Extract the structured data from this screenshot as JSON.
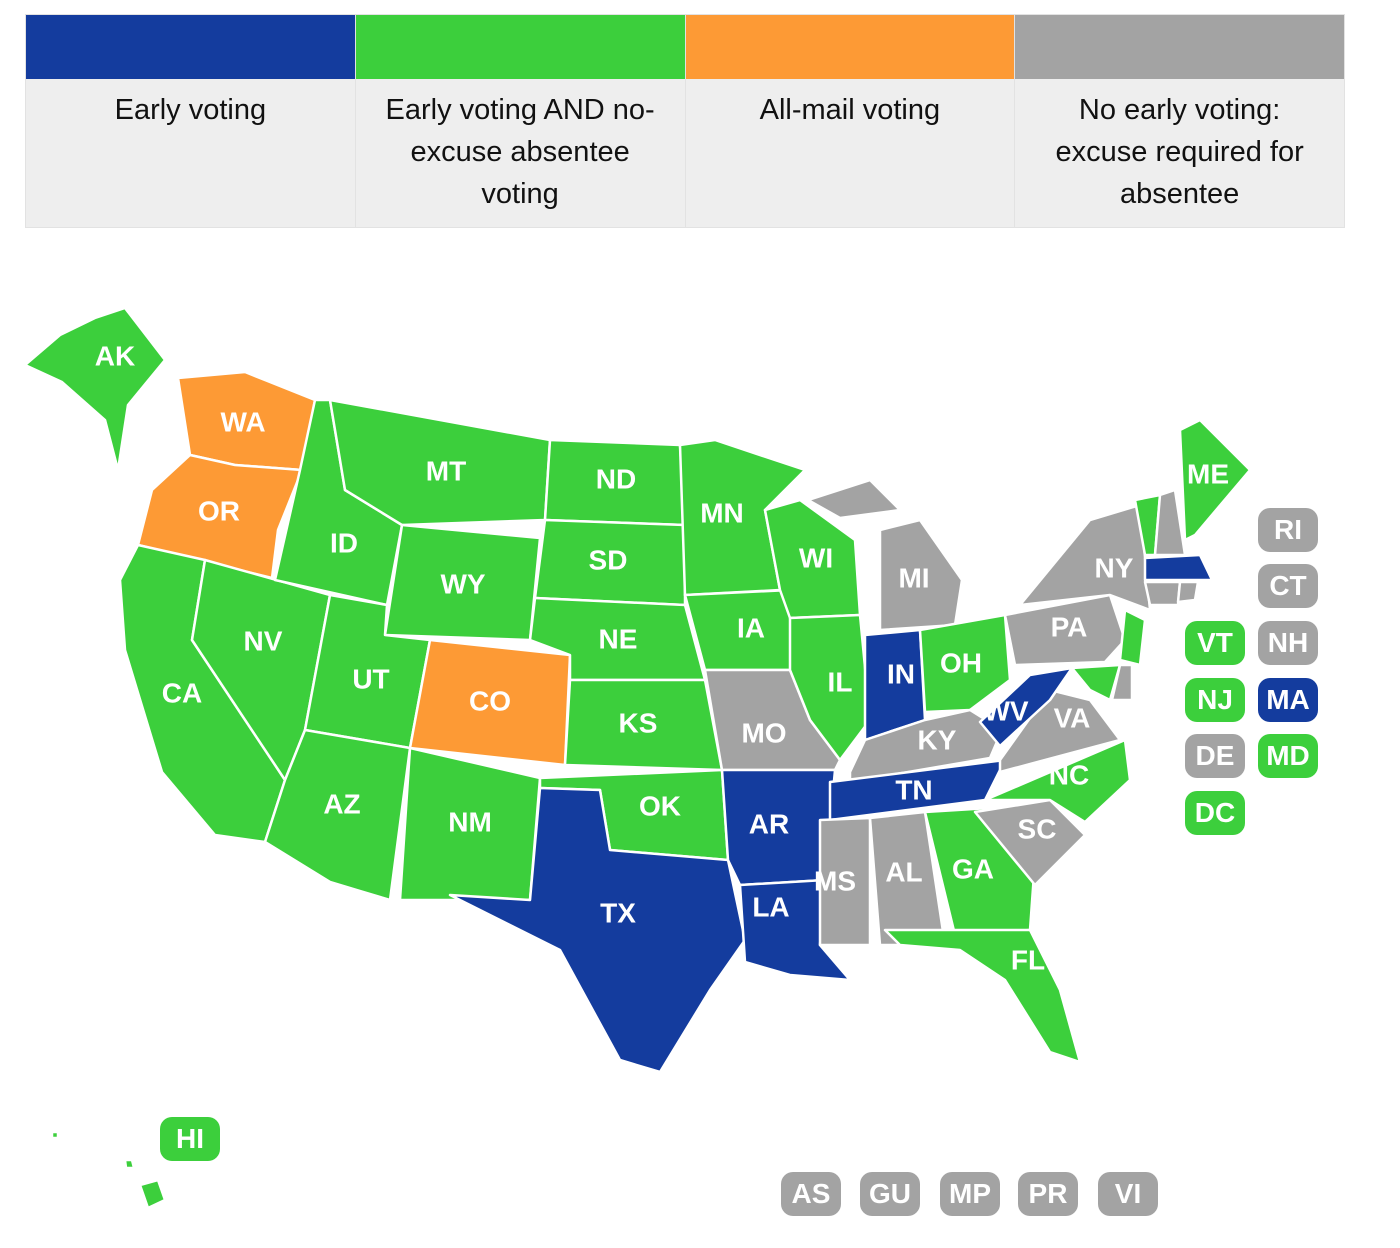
{
  "colors": {
    "early": "#143c9e",
    "early_noexcuse": "#3ccf3c",
    "allmail": "#fd9a35",
    "none": "#a3a3a3"
  },
  "legend": [
    {
      "key": "early",
      "label": "Early voting"
    },
    {
      "key": "early_noexcuse",
      "label": "Early voting AND no-excuse absentee voting"
    },
    {
      "key": "allmail",
      "label": "All-mail voting"
    },
    {
      "key": "none",
      "label": "No early voting: excuse required for absentee"
    }
  ],
  "states": {
    "AK": "early_noexcuse",
    "WA": "allmail",
    "OR": "allmail",
    "CA": "early_noexcuse",
    "NV": "early_noexcuse",
    "ID": "early_noexcuse",
    "MT": "early_noexcuse",
    "WY": "early_noexcuse",
    "UT": "early_noexcuse",
    "CO": "allmail",
    "AZ": "early_noexcuse",
    "NM": "early_noexcuse",
    "ND": "early_noexcuse",
    "SD": "early_noexcuse",
    "NE": "early_noexcuse",
    "KS": "early_noexcuse",
    "OK": "early_noexcuse",
    "TX": "early",
    "MN": "early_noexcuse",
    "IA": "early_noexcuse",
    "MO": "none",
    "AR": "early",
    "LA": "early",
    "WI": "early_noexcuse",
    "IL": "early_noexcuse",
    "MI": "none",
    "IN": "early",
    "OH": "early_noexcuse",
    "KY": "none",
    "TN": "early",
    "MS": "none",
    "AL": "none",
    "GA": "early_noexcuse",
    "FL": "early_noexcuse",
    "SC": "none",
    "NC": "early_noexcuse",
    "VA": "none",
    "WV": "early",
    "PA": "none",
    "NY": "none",
    "NJ": "early_noexcuse",
    "ME": "early_noexcuse",
    "VT": "early_noexcuse",
    "NH": "none",
    "MA": "early",
    "CT": "none",
    "RI": "none",
    "DE": "none",
    "MD": "early_noexcuse",
    "DC": "early_noexcuse",
    "HI": "early_noexcuse"
  },
  "small_state_labels": [
    "RI",
    "CT",
    "VT",
    "NH",
    "NJ",
    "MA",
    "DE",
    "MD",
    "DC",
    "HI"
  ],
  "territories": [
    {
      "code": "AS",
      "key": "none"
    },
    {
      "code": "GU",
      "key": "none"
    },
    {
      "code": "MP",
      "key": "none"
    },
    {
      "code": "PR",
      "key": "none"
    },
    {
      "code": "VI",
      "key": "none"
    }
  ]
}
